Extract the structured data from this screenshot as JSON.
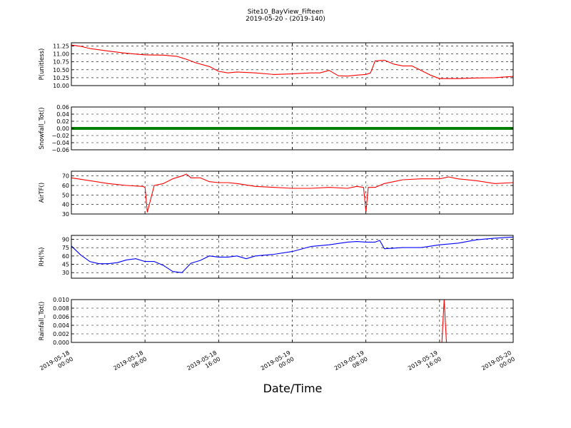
{
  "figure": {
    "title_line1": "Site10_BayView_Fifteen",
    "title_line2": "2019-05-20 - (2019-140)",
    "xlabel": "Date/Time"
  },
  "chart_data": [
    {
      "type": "line",
      "name": "P",
      "ylabel": "P(unitless)",
      "color": "#ff0000",
      "ylim": [
        10.0,
        11.35
      ],
      "yticks": [
        10.0,
        10.25,
        10.5,
        10.75,
        11.0,
        11.25
      ],
      "ytick_labels": [
        "10.00",
        "10.25",
        "10.50",
        "10.75",
        "11.00",
        "11.25"
      ],
      "x": [
        "2019-05-18 00:00",
        "2019-05-18 01:00",
        "2019-05-18 02:00",
        "2019-05-18 04:00",
        "2019-05-18 06:00",
        "2019-05-18 08:00",
        "2019-05-18 10:00",
        "2019-05-18 11:30",
        "2019-05-18 12:30",
        "2019-05-18 13:30",
        "2019-05-18 15:00",
        "2019-05-18 16:00",
        "2019-05-18 17:00",
        "2019-05-18 18:00",
        "2019-05-18 20:00",
        "2019-05-18 22:00",
        "2019-05-19 00:00",
        "2019-05-19 02:00",
        "2019-05-19 03:00",
        "2019-05-19 04:00",
        "2019-05-19 05:00",
        "2019-05-19 06:00",
        "2019-05-19 07:00",
        "2019-05-19 08:00",
        "2019-05-19 08:30",
        "2019-05-19 09:00",
        "2019-05-19 10:00",
        "2019-05-19 11:00",
        "2019-05-19 12:00",
        "2019-05-19 13:00",
        "2019-05-19 14:00",
        "2019-05-19 15:00",
        "2019-05-19 16:00",
        "2019-05-19 18:00",
        "2019-05-19 20:00",
        "2019-05-19 22:00",
        "2019-05-20 00:00"
      ],
      "values": [
        11.28,
        11.24,
        11.17,
        11.09,
        11.02,
        10.97,
        10.96,
        10.92,
        10.83,
        10.72,
        10.6,
        10.45,
        10.4,
        10.43,
        10.4,
        10.35,
        10.37,
        10.4,
        10.4,
        10.48,
        10.31,
        10.3,
        10.33,
        10.35,
        10.4,
        10.78,
        10.8,
        10.68,
        10.62,
        10.62,
        10.48,
        10.33,
        10.22,
        10.22,
        10.24,
        10.25,
        10.29
      ]
    },
    {
      "type": "line",
      "name": "Snowfall",
      "ylabel": "Snowfall_Tot()",
      "color": "#008000",
      "ylim": [
        -0.06,
        0.06
      ],
      "yticks": [
        -0.06,
        -0.04,
        -0.02,
        0.0,
        0.02,
        0.04,
        0.06
      ],
      "ytick_labels": [
        "−0.06",
        "−0.04",
        "−0.02",
        "0.00",
        "0.02",
        "0.04",
        "0.06"
      ],
      "x": [
        "2019-05-18 00:00",
        "2019-05-20 00:00"
      ],
      "values": [
        0.0,
        0.0
      ]
    },
    {
      "type": "line",
      "name": "AirT",
      "ylabel": "AirTF()",
      "color": "#ff0000",
      "ylim": [
        30,
        75
      ],
      "yticks": [
        30,
        40,
        50,
        60,
        70
      ],
      "ytick_labels": [
        "30",
        "40",
        "50",
        "60",
        "70"
      ],
      "x": [
        "2019-05-18 00:00",
        "2019-05-18 02:00",
        "2019-05-18 04:00",
        "2019-05-18 06:00",
        "2019-05-18 07:45",
        "2019-05-18 08:00",
        "2019-05-18 08:15",
        "2019-05-18 09:00",
        "2019-05-18 10:00",
        "2019-05-18 11:00",
        "2019-05-18 12:00",
        "2019-05-18 12:30",
        "2019-05-18 13:00",
        "2019-05-18 14:00",
        "2019-05-18 15:00",
        "2019-05-18 16:00",
        "2019-05-18 17:00",
        "2019-05-18 18:00",
        "2019-05-18 20:00",
        "2019-05-18 22:00",
        "2019-05-19 00:00",
        "2019-05-19 02:00",
        "2019-05-19 04:00",
        "2019-05-19 06:00",
        "2019-05-19 07:00",
        "2019-05-19 07:45",
        "2019-05-19 08:00",
        "2019-05-19 08:15",
        "2019-05-19 09:00",
        "2019-05-19 10:00",
        "2019-05-19 11:00",
        "2019-05-19 12:00",
        "2019-05-19 14:00",
        "2019-05-19 16:00",
        "2019-05-19 17:00",
        "2019-05-19 18:00",
        "2019-05-19 20:00",
        "2019-05-19 22:00",
        "2019-05-20 00:00"
      ],
      "values": [
        68,
        65,
        62,
        60,
        59,
        58,
        32,
        60,
        62,
        67,
        70,
        72,
        68,
        68,
        64,
        63,
        63,
        62,
        59,
        58,
        57,
        57,
        58,
        57,
        59,
        58,
        32,
        58,
        58,
        62,
        64,
        66,
        67,
        67,
        69,
        67,
        65,
        62,
        63
      ]
    },
    {
      "type": "line",
      "name": "RH",
      "ylabel": "RH(%)",
      "color": "#0000ff",
      "ylim": [
        20,
        97
      ],
      "yticks": [
        30,
        45,
        60,
        75,
        90
      ],
      "ytick_labels": [
        "30",
        "45",
        "60",
        "75",
        "90"
      ],
      "x": [
        "2019-05-18 00:00",
        "2019-05-18 01:00",
        "2019-05-18 02:00",
        "2019-05-18 03:00",
        "2019-05-18 04:00",
        "2019-05-18 05:00",
        "2019-05-18 06:00",
        "2019-05-18 07:00",
        "2019-05-18 08:00",
        "2019-05-18 09:00",
        "2019-05-18 10:00",
        "2019-05-18 11:00",
        "2019-05-18 12:00",
        "2019-05-18 13:00",
        "2019-05-18 14:00",
        "2019-05-18 15:00",
        "2019-05-18 16:00",
        "2019-05-18 17:00",
        "2019-05-18 18:00",
        "2019-05-18 19:00",
        "2019-05-18 20:00",
        "2019-05-18 22:00",
        "2019-05-19 00:00",
        "2019-05-19 02:00",
        "2019-05-19 04:00",
        "2019-05-19 06:00",
        "2019-05-19 07:00",
        "2019-05-19 08:00",
        "2019-05-19 09:00",
        "2019-05-19 09:30",
        "2019-05-19 10:00",
        "2019-05-19 11:00",
        "2019-05-19 12:00",
        "2019-05-19 14:00",
        "2019-05-19 16:00",
        "2019-05-19 18:00",
        "2019-05-19 20:00",
        "2019-05-19 22:00",
        "2019-05-20 00:00"
      ],
      "values": [
        78,
        62,
        50,
        46,
        46,
        48,
        53,
        55,
        50,
        50,
        43,
        32,
        30,
        47,
        52,
        60,
        58,
        58,
        60,
        55,
        60,
        63,
        68,
        77,
        80,
        85,
        86,
        85,
        85,
        88,
        73,
        74,
        75,
        75,
        80,
        83,
        89,
        92,
        94
      ]
    },
    {
      "type": "line",
      "name": "Rainfall",
      "ylabel": "Rainfall_Tot()",
      "color": "#ff0000",
      "ylim": [
        0.0,
        0.01
      ],
      "yticks": [
        0.0,
        0.002,
        0.004,
        0.006,
        0.008,
        0.01
      ],
      "ytick_labels": [
        "0.000",
        "0.002",
        "0.004",
        "0.006",
        "0.008",
        "0.010"
      ],
      "x": [
        "2019-05-18 00:00",
        "2019-05-19 16:15",
        "2019-05-19 16:30",
        "2019-05-19 16:45",
        "2019-05-20 00:00"
      ],
      "values": [
        0.0,
        0.0,
        0.01,
        0.0,
        0.0
      ],
      "xticks": [
        "2019-05-18 00:00",
        "2019-05-18 08:00",
        "2019-05-18 16:00",
        "2019-05-19 00:00",
        "2019-05-19 08:00",
        "2019-05-19 16:00",
        "2019-05-20 00:00"
      ],
      "xtick_labels": [
        [
          "2019-05-18",
          "00:00"
        ],
        [
          "2019-05-18",
          "08:00"
        ],
        [
          "2019-05-18",
          "16:00"
        ],
        [
          "2019-05-19",
          "00:00"
        ],
        [
          "2019-05-19",
          "08:00"
        ],
        [
          "2019-05-19",
          "16:00"
        ],
        [
          "2019-05-20",
          "00:00"
        ]
      ]
    }
  ]
}
